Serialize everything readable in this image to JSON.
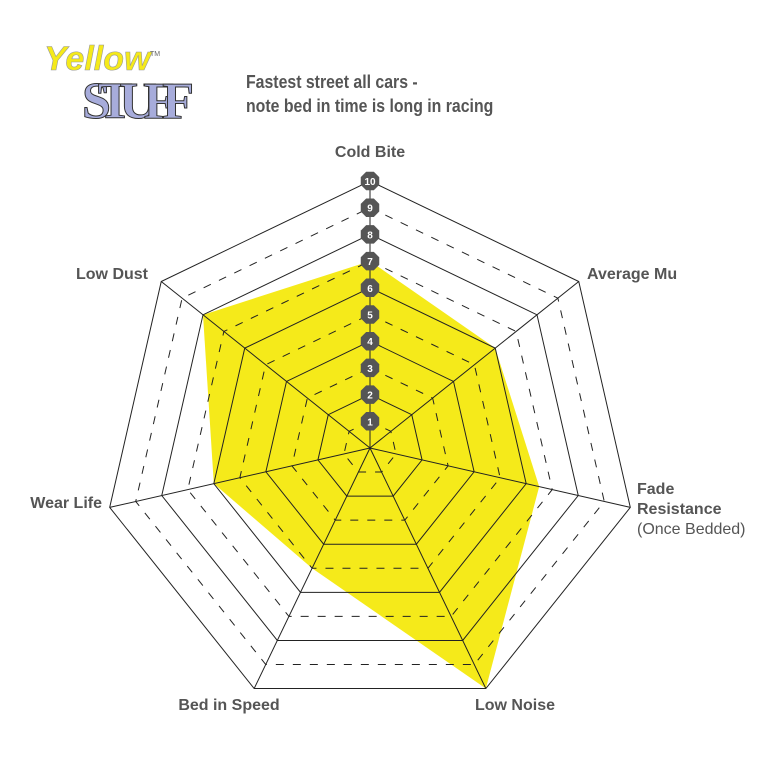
{
  "logo": {
    "line1": "Yellow",
    "line2": "STUFF",
    "tm": "TM",
    "colors": {
      "yellow": "#f5ea1a",
      "lavender": "#a7acdb"
    }
  },
  "chart_data": {
    "type": "radar",
    "title_lines": [
      "Fastest street all cars -",
      "note bed in time is long in racing"
    ],
    "axes": [
      {
        "label": "Cold Bite",
        "sub": ""
      },
      {
        "label": "Average Mu",
        "sub": ""
      },
      {
        "label": "Fade",
        "label2": "Resistance",
        "sub": "(Once Bedded)"
      },
      {
        "label": "Low Noise",
        "sub": ""
      },
      {
        "label": "Bed in Speed",
        "sub": ""
      },
      {
        "label": "Wear Life",
        "sub": ""
      },
      {
        "label": "Low Dust",
        "sub": ""
      }
    ],
    "values": [
      7,
      6,
      6.5,
      10,
      5,
      6,
      8
    ],
    "range": [
      0,
      10
    ],
    "tick_labels": [
      "1",
      "2",
      "3",
      "4",
      "5",
      "6",
      "7",
      "8",
      "9",
      "10"
    ],
    "fill_color": "#f5ea1a",
    "grid_color": "#222222",
    "badge_color": "#555555"
  }
}
